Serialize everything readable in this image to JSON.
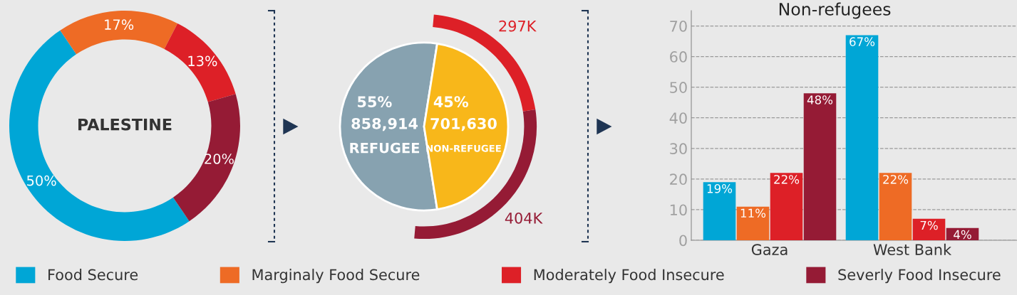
{
  "chart_data": [
    {
      "type": "donut",
      "title": "PALESTINE",
      "categories": [
        "Food Secure",
        "Marginaly Food Secure",
        "Moderately Food Insecure",
        "Severly Food Insecure"
      ],
      "values": [
        50,
        17,
        13,
        20
      ],
      "value_labels": [
        "50%",
        "17%",
        "13%",
        "20%"
      ],
      "colors": [
        "#00a6d6",
        "#ee6b25",
        "#dd2027",
        "#951b35"
      ],
      "legend": "bottom"
    },
    {
      "type": "pie",
      "categories": [
        "REFUGEE",
        "NON-REFUGEE"
      ],
      "annotations": [
        "858,914",
        "701,630"
      ],
      "series": [
        {
          "values": [
            55,
            45
          ],
          "value_labels": [
            "55%",
            "45%"
          ],
          "colors": [
            "#87a2b0",
            "#f8b71a"
          ]
        },
        {
          "values": [
            297,
            404
          ],
          "value_labels": [
            "297K",
            "404K"
          ],
          "colors": [
            "#dd2027",
            "#951b35"
          ]
        }
      ]
    },
    {
      "type": "bar",
      "title": "Non-refugees",
      "categories": [
        "Gaza",
        "West Bank"
      ],
      "series": [
        {
          "color": "#00a6d6",
          "values": [
            19,
            67
          ],
          "value_labels": [
            "19%",
            "67%"
          ]
        },
        {
          "color": "#ee6b25",
          "values": [
            11,
            22
          ],
          "value_labels": [
            "11%",
            "22%"
          ]
        },
        {
          "color": "#dd2027",
          "values": [
            22,
            7
          ],
          "value_labels": [
            "22%",
            "7%"
          ]
        },
        {
          "color": "#951b35",
          "values": [
            48,
            4
          ],
          "value_labels": [
            "48%",
            "4%"
          ]
        }
      ],
      "ylim": [
        0,
        75
      ],
      "yticks": [
        0,
        10,
        20,
        30,
        40,
        50,
        60,
        70
      ],
      "grid": "y",
      "line_style": "dashed"
    }
  ]
}
